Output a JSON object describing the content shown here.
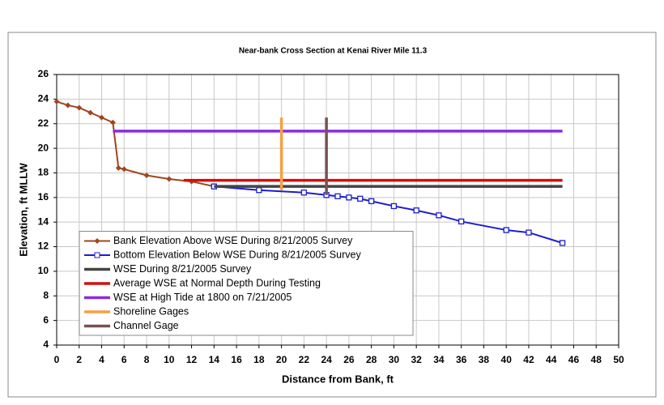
{
  "chart_data": {
    "type": "line",
    "title": "Near-bank Cross Section at Kenai River Mile 11.3",
    "xlabel": "Distance from Bank, ft",
    "ylabel": "Elevation, ft MLLW",
    "xlim": [
      0,
      50
    ],
    "ylim": [
      4,
      26
    ],
    "xticks": [
      0,
      2,
      4,
      6,
      8,
      10,
      12,
      14,
      16,
      18,
      20,
      22,
      24,
      26,
      28,
      30,
      32,
      34,
      36,
      38,
      40,
      42,
      44,
      46,
      48,
      50
    ],
    "yticks": [
      4,
      6,
      8,
      10,
      12,
      14,
      16,
      18,
      20,
      22,
      24,
      26
    ],
    "grid": true,
    "legend": "lower left",
    "series": [
      {
        "name": "Bank Elevation Above WSE During 8/21/2005 Survey",
        "color": "#a0461e",
        "marker": "diamond",
        "x": [
          0,
          1,
          2,
          3,
          4,
          5,
          5.5,
          6,
          8,
          10,
          12,
          14
        ],
        "values": [
          23.8,
          23.5,
          23.3,
          22.9,
          22.5,
          22.1,
          18.4,
          18.3,
          17.8,
          17.5,
          17.3,
          16.9
        ]
      },
      {
        "name": "Bottom Elevation Below WSE During 8/21/2005 Survey",
        "color": "#1c1cd0",
        "marker": "square",
        "x": [
          14,
          18,
          22,
          24,
          25,
          26,
          27,
          28,
          30,
          32,
          34,
          36,
          40,
          42,
          45
        ],
        "values": [
          16.9,
          16.6,
          16.4,
          16.2,
          16.1,
          16.0,
          15.9,
          15.7,
          15.3,
          14.95,
          14.55,
          14.05,
          13.35,
          13.15,
          12.3
        ]
      },
      {
        "name": "WSE During 8/21/2005 Survey",
        "color": "#444444",
        "marker": null,
        "x": [
          14,
          45
        ],
        "values": [
          16.9,
          16.9
        ]
      },
      {
        "name": "Average WSE at Normal Depth During Testing",
        "color": "#d01010",
        "marker": null,
        "x": [
          11.3,
          45
        ],
        "values": [
          17.4,
          17.4
        ]
      },
      {
        "name": "WSE at High Tide at 1800 on 7/21/2005",
        "color": "#8a2be2",
        "marker": null,
        "x": [
          5,
          45
        ],
        "values": [
          21.4,
          21.4
        ]
      },
      {
        "name": "Shoreline Gages",
        "color": "#f5a040",
        "marker": null,
        "x": [
          20,
          20
        ],
        "values": [
          16.6,
          22.5
        ]
      },
      {
        "name": "Channel Gage",
        "color": "#7a5050",
        "marker": null,
        "x": [
          24,
          24
        ],
        "values": [
          16.2,
          22.5
        ]
      }
    ]
  }
}
